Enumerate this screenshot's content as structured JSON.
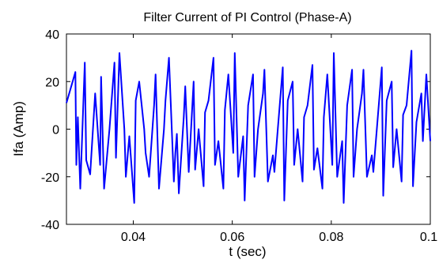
{
  "chart_data": {
    "type": "line",
    "title": "Filter Current of PI Control (Phase-A)",
    "xlabel": "t (sec)",
    "ylabel": "Ifa (Amp)",
    "xlim": [
      0.0265,
      0.1
    ],
    "ylim": [
      -40,
      40
    ],
    "xticks": [
      0.04,
      0.06,
      0.08
    ],
    "xtick_labels": [
      "0.04",
      "0.06",
      "0.08"
    ],
    "x_end_label": "0.1",
    "yticks": [
      40,
      20,
      0,
      -20,
      -40
    ],
    "ytick_labels": [
      "40",
      "20",
      "0",
      "-20",
      "-40"
    ],
    "grid": false,
    "series": [
      {
        "color": "#0000ff",
        "x": [
          0.0265,
          0.0283,
          0.0285,
          0.0288,
          0.0293,
          0.0302,
          0.0305,
          0.0313,
          0.0323,
          0.0333,
          0.0335,
          0.0341,
          0.0352,
          0.0362,
          0.0365,
          0.0372,
          0.0382,
          0.0385,
          0.0392,
          0.0402,
          0.0405,
          0.0412,
          0.0422,
          0.0425,
          0.0432,
          0.0442,
          0.0445,
          0.0452,
          0.0462,
          0.0465,
          0.0472,
          0.0482,
          0.0485,
          0.0488,
          0.0492,
          0.0502,
          0.0505,
          0.0512,
          0.0522,
          0.0525,
          0.0532,
          0.0542,
          0.0545,
          0.0552,
          0.0562,
          0.0565,
          0.0572,
          0.0582,
          0.0585,
          0.0592,
          0.0602,
          0.0605,
          0.0612,
          0.0622,
          0.0625,
          0.0632,
          0.0642,
          0.0645,
          0.0652,
          0.0662,
          0.0665,
          0.0672,
          0.0682,
          0.0685,
          0.0692,
          0.0702,
          0.0705,
          0.0712,
          0.0722,
          0.0725,
          0.0732,
          0.0742,
          0.0745,
          0.0752,
          0.0762,
          0.0765,
          0.0772,
          0.0782,
          0.0785,
          0.0792,
          0.0802,
          0.0805,
          0.0812,
          0.0822,
          0.0825,
          0.0832,
          0.0842,
          0.0845,
          0.0852,
          0.0862,
          0.0865,
          0.0872,
          0.0882,
          0.0885,
          0.0892,
          0.0902,
          0.0905,
          0.0912,
          0.0922,
          0.0925,
          0.0932,
          0.0942,
          0.0945,
          0.0952,
          0.0962,
          0.0965,
          0.0972,
          0.0982,
          0.0985,
          0.0992,
          0.1
        ],
        "y": [
          11,
          24,
          -15,
          5,
          -25,
          28,
          -13,
          -19,
          15,
          -15,
          22,
          -25,
          0,
          28,
          -12,
          32,
          0,
          -20,
          -3,
          -31,
          12,
          20,
          0,
          -10,
          -20,
          10,
          23,
          -25,
          0,
          12,
          30,
          -22,
          -10,
          -2,
          -27,
          5,
          18,
          -18,
          20,
          -17,
          0,
          -24,
          7,
          12,
          30,
          -15,
          -5,
          -25,
          8,
          23,
          -10,
          32,
          -20,
          -3,
          -30,
          10,
          23,
          -20,
          0,
          15,
          25,
          -22,
          -11,
          -18,
          0,
          26,
          -30,
          12,
          20,
          -15,
          0,
          -22,
          5,
          10,
          27,
          -17,
          -8,
          -25,
          5,
          23,
          -15,
          32,
          -20,
          -5,
          -31,
          10,
          25,
          -20,
          0,
          15,
          25,
          -20,
          -11,
          -18,
          0,
          26,
          -28,
          12,
          20,
          -16,
          0,
          -22,
          6,
          10,
          33,
          -24,
          3,
          15,
          -5,
          23,
          -5
        ]
      }
    ]
  }
}
